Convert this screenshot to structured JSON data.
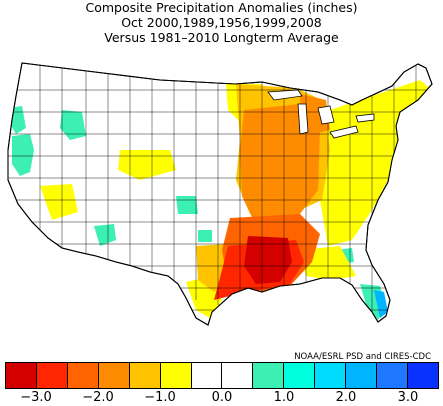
{
  "title": {
    "line1": "Composite Precipitation Anomalies (inches)",
    "line2": "Oct   2000,1989,1956,1999,2008",
    "line3": "Versus 1981–2010 Longterm Average"
  },
  "credit": "NOAA/ESRL PSD and CIRES-CDC",
  "legend": {
    "colors": [
      "#d40000",
      "#ff2600",
      "#ff6400",
      "#ff8c00",
      "#ffc300",
      "#ffff00",
      "#ffffff",
      "#ffffff",
      "#3cf0b4",
      "#00ffdc",
      "#00dcff",
      "#00b4ff",
      "#1e78ff",
      "#0a32ff"
    ],
    "ticks": [
      {
        "label": "−3.0",
        "index": 1
      },
      {
        "label": "−2.0",
        "index": 3
      },
      {
        "label": "−1.0",
        "index": 5
      },
      {
        "label": "0.0",
        "index": 7
      },
      {
        "label": "1.0",
        "index": 9
      },
      {
        "label": "2.0",
        "index": 11
      },
      {
        "label": "3.0",
        "index": 13
      }
    ]
  },
  "map": {
    "region": "Contiguous United States climate divisions",
    "dry_core_color": "#d40000",
    "wet_color": "#3cf0b4"
  }
}
